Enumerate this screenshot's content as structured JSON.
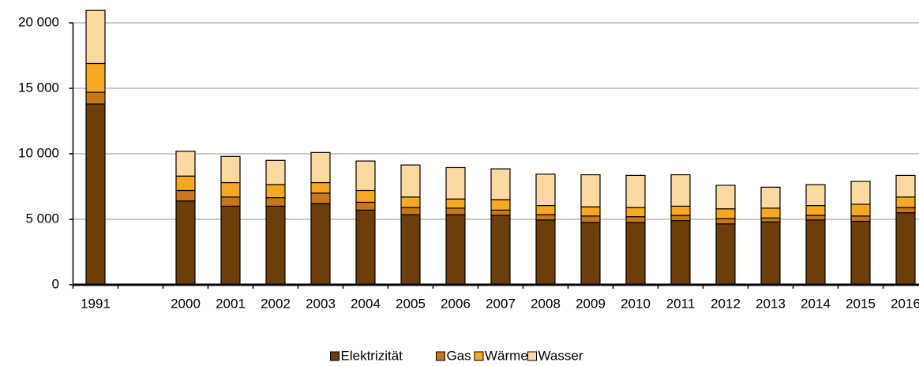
{
  "chart_data": {
    "type": "stacked_bar",
    "categories": [
      "1991",
      null,
      "2000",
      "2001",
      "2002",
      "2003",
      "2004",
      "2005",
      "2006",
      "2007",
      "2008",
      "2009",
      "2010",
      "2011",
      "2012",
      "2013",
      "2014",
      "2015",
      "2016"
    ],
    "series": [
      {
        "name": "Elektrizität",
        "color": "#6b3e0b",
        "values": [
          13800,
          null,
          6400,
          6000,
          6000,
          6200,
          5700,
          5350,
          5350,
          5300,
          4950,
          4750,
          4750,
          4900,
          4650,
          4800,
          4950,
          4850,
          5500
        ]
      },
      {
        "name": "Gas",
        "color": "#c8781a",
        "values": [
          900,
          null,
          800,
          700,
          650,
          800,
          600,
          550,
          500,
          400,
          400,
          500,
          450,
          400,
          400,
          300,
          350,
          400,
          400
        ]
      },
      {
        "name": "Wärme",
        "color": "#f7a823",
        "values": [
          2200,
          null,
          1100,
          1100,
          1000,
          800,
          900,
          800,
          700,
          800,
          700,
          700,
          700,
          700,
          750,
          750,
          750,
          900,
          800
        ]
      },
      {
        "name": "Wasser",
        "color": "#fcd9a0",
        "values": [
          4050,
          null,
          1900,
          2000,
          1850,
          2300,
          2250,
          2450,
          2400,
          2350,
          2400,
          2450,
          2450,
          2400,
          1800,
          1600,
          1600,
          1750,
          1650
        ]
      }
    ],
    "ylim": [
      0,
      20000
    ],
    "yticks": [
      0,
      {
        "value": 5000,
        "label": "5 000"
      },
      {
        "value": 10000,
        "label": "10 000"
      },
      {
        "value": 15000,
        "label": "15 000"
      },
      {
        "value": 20000,
        "label": "20 000"
      }
    ],
    "grid": true,
    "legend": "bottom"
  }
}
